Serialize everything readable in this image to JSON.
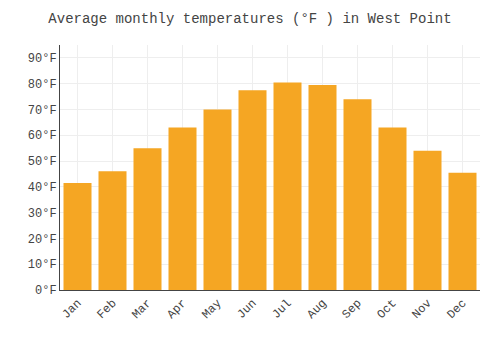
{
  "chart_data": {
    "type": "bar",
    "title": "Average monthly temperatures (°F ) in West Point",
    "categories": [
      "Jan",
      "Feb",
      "Mar",
      "Apr",
      "May",
      "Jun",
      "Jul",
      "Aug",
      "Sep",
      "Oct",
      "Nov",
      "Dec"
    ],
    "values": [
      41.5,
      46,
      55,
      63,
      70,
      77.5,
      80.5,
      79.5,
      74,
      63,
      54,
      45.5
    ],
    "color": "#F5A623",
    "ylim": [
      0,
      95
    ],
    "yticks": [
      {
        "value": 0,
        "label": "0°F"
      },
      {
        "value": 10,
        "label": "10°F"
      },
      {
        "value": 20,
        "label": "20°F"
      },
      {
        "value": 30,
        "label": "30°F"
      },
      {
        "value": 40,
        "label": "40°F"
      },
      {
        "value": 50,
        "label": "50°F"
      },
      {
        "value": 60,
        "label": "60°F"
      },
      {
        "value": 70,
        "label": "70°F"
      },
      {
        "value": 80,
        "label": "80°F"
      },
      {
        "value": 90,
        "label": "90°F"
      }
    ],
    "grid": true
  }
}
